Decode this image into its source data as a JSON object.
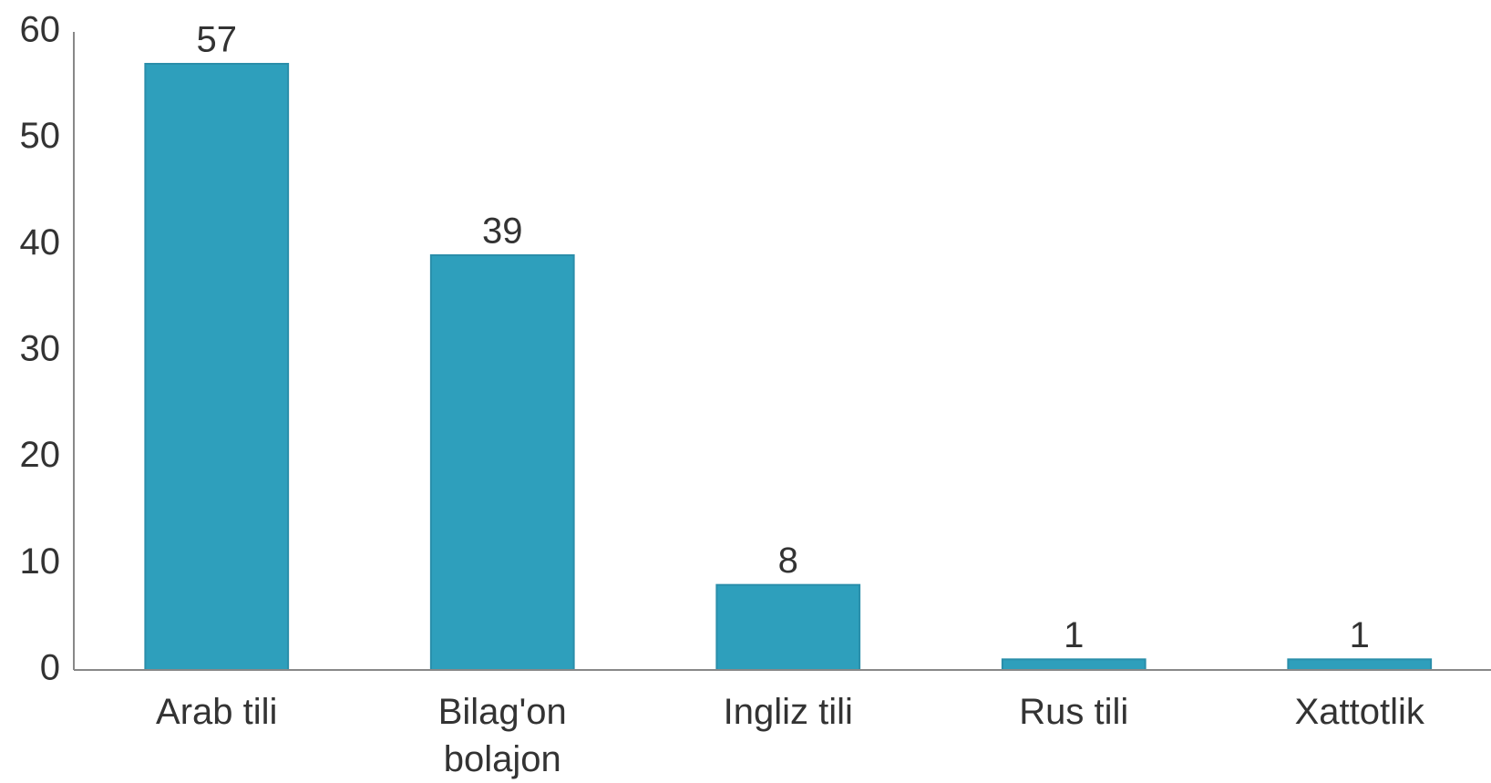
{
  "chart_data": {
    "type": "bar",
    "categories": [
      "Arab tili",
      "Bilag'on bolajon",
      "Ingliz tili",
      "Rus tili",
      "Xattotlik"
    ],
    "values": [
      57,
      39,
      8,
      1,
      1
    ],
    "color": "#2e9fbc",
    "ylim": [
      0,
      60
    ],
    "yticks": [
      0,
      10,
      20,
      30,
      40,
      50,
      60
    ],
    "grid": false
  }
}
